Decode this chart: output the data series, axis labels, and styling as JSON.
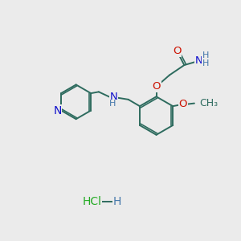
{
  "bg_color": "#ebebeb",
  "bond_color": "#2d6b5e",
  "bw": 1.4,
  "O_color": "#cc1100",
  "N_color": "#1111cc",
  "Cl_color": "#22aa22",
  "H_color": "#4477aa",
  "fs": 9.5,
  "xlim": [
    0,
    10
  ],
  "ylim": [
    0,
    10
  ]
}
